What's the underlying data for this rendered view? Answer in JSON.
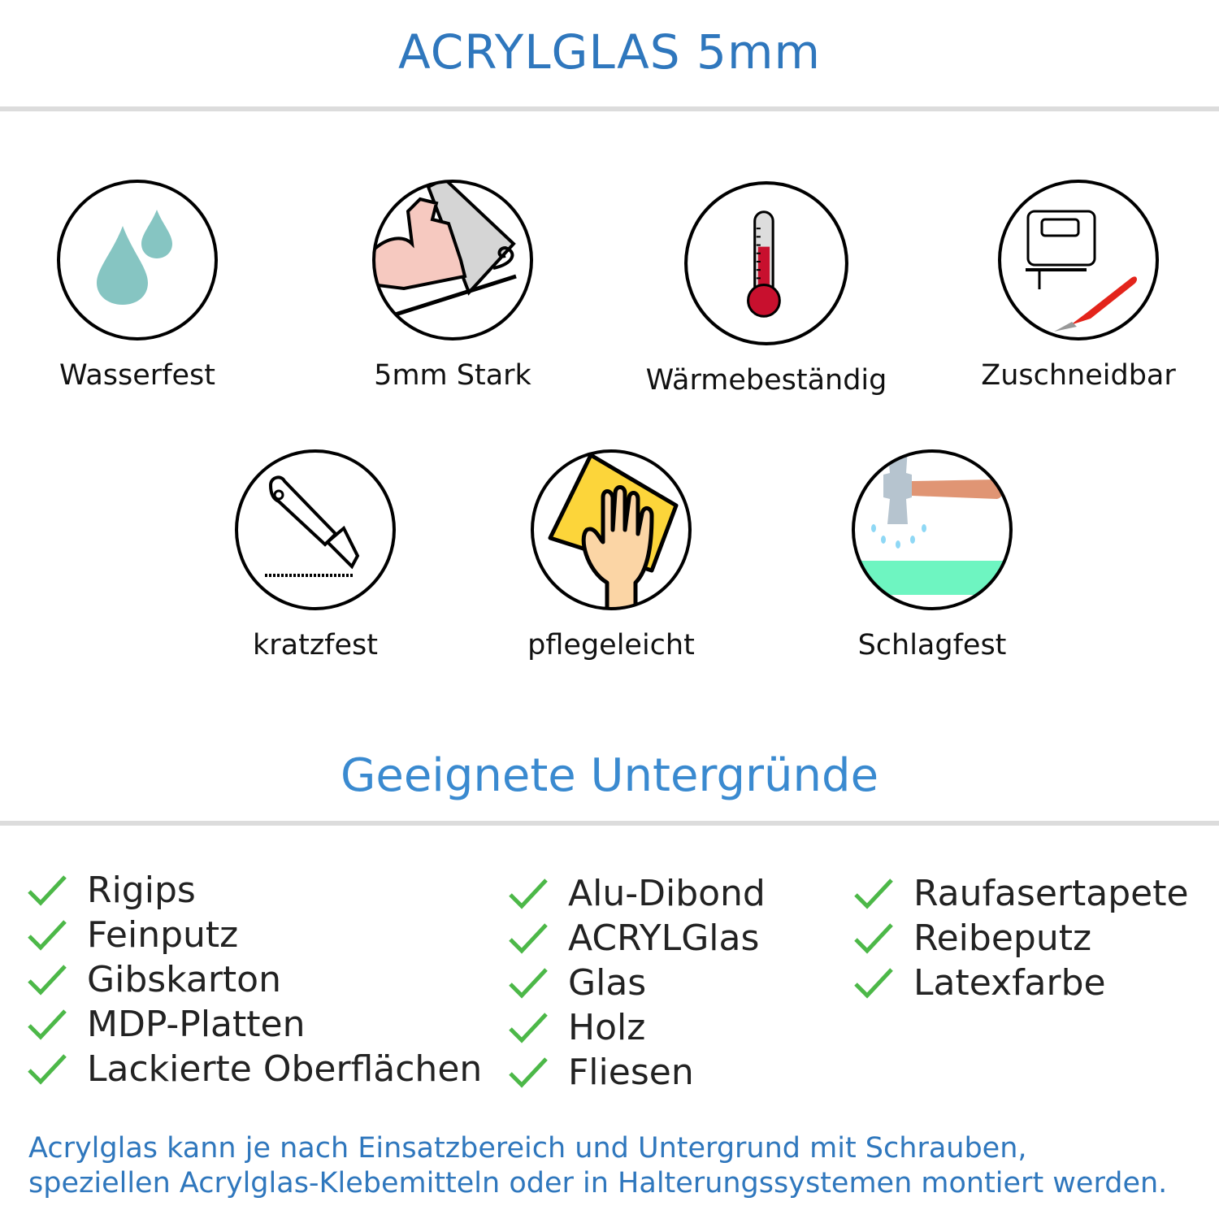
{
  "header": {
    "title": "ACRYLGLAS 5mm"
  },
  "features": [
    {
      "label": "Wasserfest",
      "icon": "water-drops-icon"
    },
    {
      "label": "5mm Stark",
      "icon": "strong-arm-icon"
    },
    {
      "label": "Wärmebeständig",
      "icon": "thermometer-icon"
    },
    {
      "label": "Zuschneidbar",
      "icon": "jigsaw-cutter-icon"
    },
    {
      "label": "kratzfest",
      "icon": "utility-knife-icon"
    },
    {
      "label": "pflegeleicht",
      "icon": "hand-cleaning-cloth-icon"
    },
    {
      "label": "Schlagfest",
      "icon": "hammer-impact-icon"
    }
  ],
  "surfaces": {
    "title": "Geeignete Untergründe",
    "columns": [
      [
        "Rigips",
        "Feinputz",
        "Gibskarton",
        "MDP-Platten",
        "Lackierte Oberflächen"
      ],
      [
        "Alu-Dibond",
        "ACRYLGlas",
        "Glas",
        "Holz",
        "Fliesen"
      ],
      [
        "Raufasertapete",
        "Reibeputz",
        "Latexfarbe"
      ]
    ]
  },
  "note": {
    "line1": "Acrylglas kann je nach Einsatzbereich und Untergrund mit Schrauben,",
    "line2": "speziellen Acrylglas-Klebemitteln oder in Halterungssystemen montiert werden."
  },
  "colors": {
    "title": "#2f77bd",
    "check": "#4cb848",
    "rule": "#dcdcdc"
  }
}
